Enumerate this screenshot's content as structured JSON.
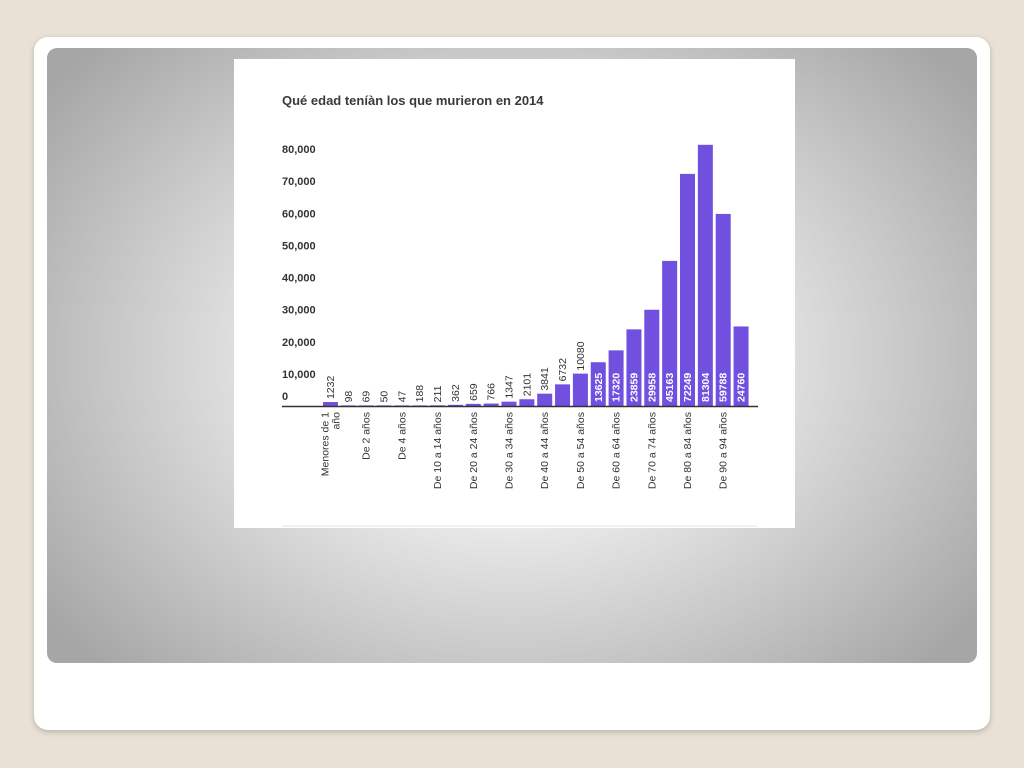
{
  "colors": {
    "page_background": "#e8e1d6",
    "bar_color": "#7150e0",
    "axis_color": "#333333"
  },
  "chart_data": {
    "type": "bar",
    "title": "Qué edad teníàn los que murieron en 2014",
    "xlabel": "",
    "ylabel": "",
    "ylim": [
      0,
      80000
    ],
    "y_ticks": [
      0,
      10000,
      20000,
      30000,
      40000,
      50000,
      60000,
      70000,
      80000
    ],
    "y_tick_labels": [
      "0",
      "10,000",
      "20,000",
      "30,000",
      "40,000",
      "50,000",
      "60,000",
      "70,000",
      "80,000"
    ],
    "categories": [
      [
        "Menores de 1",
        "año"
      ],
      "",
      "De 2 años",
      "",
      "De 4 años",
      "",
      "De 10 a 14 años",
      "",
      "De 20 a 24 años",
      "",
      "De 30 a 34 años",
      "",
      "De 40 a 44 años",
      "",
      "De 50 a 54 años",
      "",
      "De 60 a 64 años",
      "",
      "De 70 a 74 años",
      "",
      "De 80 a 84 años",
      "",
      "De 90 a 94 años",
      ""
    ],
    "values": [
      1232,
      98,
      69,
      50,
      47,
      188,
      211,
      362,
      659,
      766,
      1347,
      2101,
      3841,
      6732,
      10080,
      13625,
      17320,
      23859,
      29958,
      45163,
      72249,
      81304,
      59788,
      24760
    ],
    "value_labels": [
      "1232",
      "98",
      "69",
      "50",
      "47",
      "188",
      "211",
      "362",
      "659",
      "766",
      "1347",
      "2101",
      "3841",
      "6732",
      "10080",
      "13625",
      "17320",
      "23859",
      "29958",
      "45163",
      "72249",
      "81304",
      "59788",
      "24760"
    ],
    "grid": false,
    "legend": "none"
  }
}
